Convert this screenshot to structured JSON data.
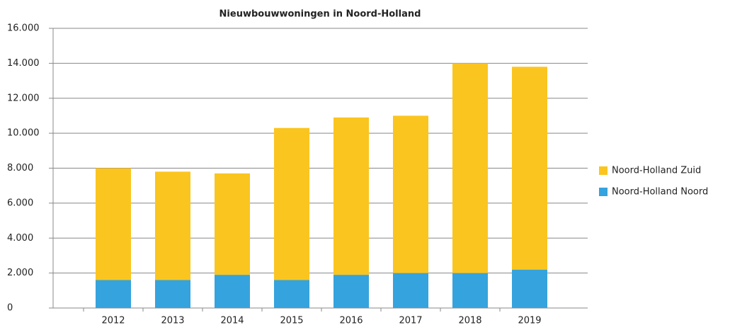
{
  "chart_data": {
    "type": "stacked_bar",
    "title": "Nieuwbouwwoningen in Noord-Holland",
    "categories": [
      "2012",
      "2013",
      "2014",
      "2015",
      "2016",
      "2017",
      "2018",
      "2019"
    ],
    "series": [
      {
        "name": "Noord-Holland Noord",
        "color": "#35a3dd",
        "values": [
          1600,
          1600,
          1900,
          1600,
          1900,
          2000,
          2000,
          2200
        ]
      },
      {
        "name": "Noord-Holland Zuid",
        "color": "#fbc520",
        "values": [
          6400,
          6200,
          5800,
          8700,
          9000,
          9000,
          12000,
          11600
        ]
      }
    ],
    "ylim": [
      0,
      16000
    ],
    "yticks": [
      0,
      {
        "value": 2000,
        "label": "2.000"
      },
      {
        "value": 4000,
        "label": "4.000"
      },
      {
        "value": 6000,
        "label": "6.000"
      },
      {
        "value": 8000,
        "label": "8.000"
      },
      {
        "value": 10000,
        "label": "10.000"
      },
      {
        "value": 12000,
        "label": "12.000"
      },
      {
        "value": 14000,
        "label": "14.000"
      },
      {
        "value": 16000,
        "label": "16.000"
      }
    ],
    "grid": true,
    "legend": "right"
  }
}
